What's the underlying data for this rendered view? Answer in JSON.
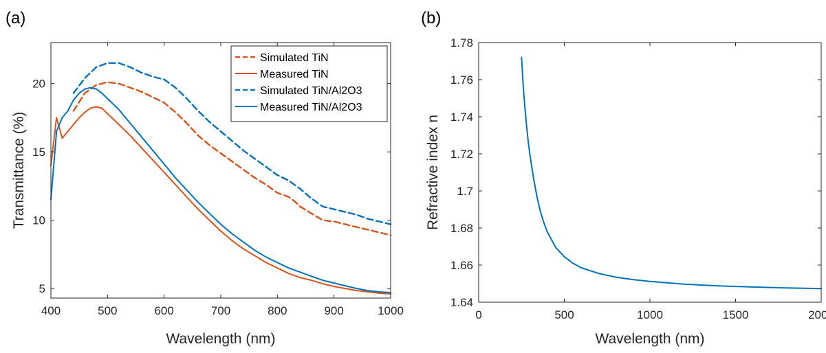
{
  "colors": {
    "orange": "#d95319",
    "blue": "#0072bd",
    "axis": "#262626"
  },
  "chart_data": [
    {
      "type": "line",
      "panel_label": "(a)",
      "xlabel": "Wavelength (nm)",
      "ylabel": "Transmittance (%)",
      "xlim": [
        400,
        1000
      ],
      "ylim": [
        4.3,
        23
      ],
      "xticks": [
        400,
        500,
        600,
        700,
        800,
        900,
        1000
      ],
      "xtick_labels": [
        "400",
        "500",
        "600",
        "700",
        "800",
        "900",
        "1000"
      ],
      "yticks": [
        5,
        10,
        15,
        20
      ],
      "ytick_labels": [
        "5",
        "10",
        "15",
        "20"
      ],
      "legend_location": "top-right",
      "series": [
        {
          "name": "Simulated TiN",
          "style": "dashed",
          "color": "#d95319",
          "x": [
            440,
            460,
            480,
            500,
            520,
            540,
            560,
            580,
            600,
            620,
            640,
            660,
            680,
            700,
            720,
            740,
            760,
            780,
            800,
            820,
            830,
            840,
            860,
            880,
            900,
            920,
            940,
            960,
            980,
            1000
          ],
          "y": [
            18.0,
            19.3,
            19.9,
            20.1,
            20.0,
            19.7,
            19.4,
            19.0,
            18.6,
            17.9,
            17.1,
            16.2,
            15.5,
            14.9,
            14.3,
            13.7,
            13.1,
            12.6,
            12.0,
            11.7,
            11.4,
            11.0,
            10.5,
            10.0,
            9.9,
            9.7,
            9.5,
            9.3,
            9.1,
            8.9
          ]
        },
        {
          "name": "Measured TiN",
          "style": "solid",
          "color": "#d95319",
          "x": [
            400,
            410,
            420,
            430,
            440,
            450,
            460,
            470,
            480,
            490,
            500,
            520,
            540,
            560,
            580,
            600,
            620,
            640,
            660,
            680,
            700,
            720,
            740,
            760,
            780,
            800,
            820,
            840,
            860,
            880,
            900,
            920,
            940,
            960,
            980,
            1000
          ],
          "y": [
            14.0,
            17.5,
            16.0,
            16.5,
            17.0,
            17.5,
            17.9,
            18.2,
            18.3,
            18.2,
            17.8,
            17.0,
            16.2,
            15.3,
            14.4,
            13.5,
            12.6,
            11.7,
            10.8,
            10.0,
            9.2,
            8.5,
            7.9,
            7.4,
            6.9,
            6.5,
            6.1,
            5.8,
            5.6,
            5.35,
            5.15,
            5.0,
            4.85,
            4.75,
            4.65,
            4.6
          ]
        },
        {
          "name": "Simulated TiN/Al2O3",
          "style": "dashed",
          "color": "#0072bd",
          "x": [
            440,
            460,
            480,
            500,
            520,
            540,
            560,
            580,
            600,
            620,
            640,
            660,
            680,
            700,
            720,
            740,
            760,
            780,
            800,
            820,
            830,
            840,
            860,
            880,
            900,
            920,
            940,
            960,
            980,
            1000
          ],
          "y": [
            19.3,
            20.4,
            21.2,
            21.5,
            21.5,
            21.2,
            20.8,
            20.5,
            20.3,
            19.7,
            18.9,
            18.0,
            17.2,
            16.5,
            15.8,
            15.1,
            14.5,
            13.9,
            13.3,
            12.9,
            12.6,
            12.3,
            11.6,
            11.0,
            10.8,
            10.6,
            10.4,
            10.1,
            9.9,
            9.7
          ]
        },
        {
          "name": "Measured TiN/Al2O3",
          "style": "solid",
          "color": "#0072bd",
          "x": [
            400,
            410,
            420,
            430,
            440,
            450,
            460,
            470,
            480,
            490,
            500,
            520,
            540,
            560,
            580,
            600,
            620,
            640,
            660,
            680,
            700,
            720,
            740,
            760,
            780,
            800,
            820,
            840,
            860,
            880,
            900,
            920,
            940,
            960,
            980,
            1000
          ],
          "y": [
            11.5,
            16.5,
            17.5,
            18.0,
            18.8,
            19.3,
            19.6,
            19.7,
            19.6,
            19.3,
            18.9,
            18.1,
            17.1,
            16.1,
            15.1,
            14.1,
            13.1,
            12.2,
            11.3,
            10.5,
            9.7,
            9.0,
            8.4,
            7.8,
            7.3,
            6.9,
            6.5,
            6.2,
            5.9,
            5.6,
            5.4,
            5.2,
            5.0,
            4.85,
            4.75,
            4.7
          ]
        }
      ]
    },
    {
      "type": "line",
      "panel_label": "(b)",
      "xlabel": "Wavelength (nm)",
      "ylabel": "Refractive index n",
      "xlim": [
        0,
        2000
      ],
      "ylim": [
        1.64,
        1.78
      ],
      "xticks": [
        0,
        500,
        1000,
        1500,
        2000
      ],
      "xtick_labels": [
        "0",
        "500",
        "1000",
        "1500",
        "2000"
      ],
      "yticks": [
        1.64,
        1.66,
        1.68,
        1.7,
        1.72,
        1.74,
        1.76,
        1.78
      ],
      "ytick_labels": [
        "1.64",
        "1.66",
        "1.68",
        "1.7",
        "1.72",
        "1.74",
        "1.76",
        "1.78"
      ],
      "series": [
        {
          "name": "n",
          "style": "solid",
          "color": "#0072bd",
          "x": [
            250,
            260,
            270,
            280,
            290,
            300,
            320,
            340,
            360,
            380,
            400,
            450,
            500,
            550,
            600,
            700,
            800,
            900,
            1000,
            1200,
            1400,
            1600,
            1800,
            2000
          ],
          "y": [
            1.772,
            1.757,
            1.745,
            1.735,
            1.726,
            1.719,
            1.707,
            1.697,
            1.689,
            1.683,
            1.678,
            1.6695,
            1.6645,
            1.661,
            1.6585,
            1.6555,
            1.6535,
            1.6522,
            1.6512,
            1.6497,
            1.6488,
            1.6482,
            1.6477,
            1.6473
          ]
        }
      ]
    }
  ]
}
